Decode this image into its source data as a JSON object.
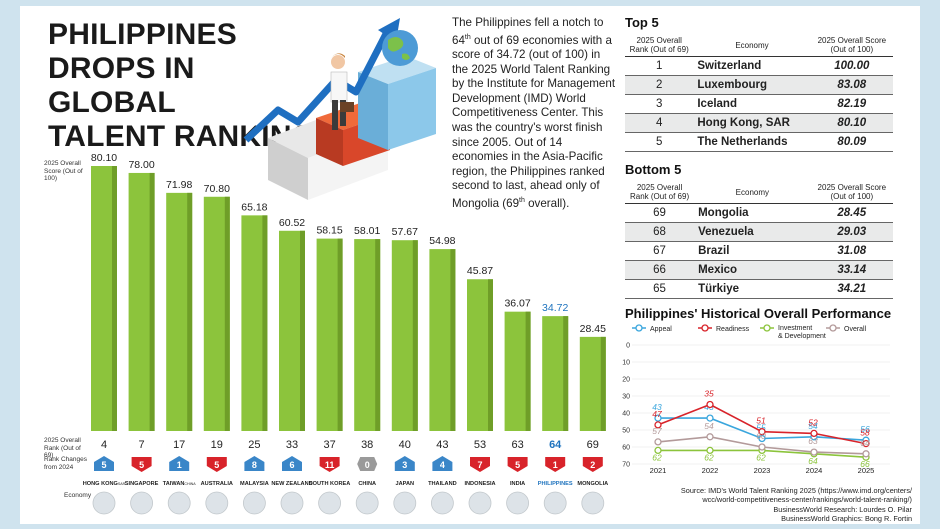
{
  "headline": [
    "PHILIPPINES",
    "DROPS IN GLOBAL",
    "TALENT RANKING"
  ],
  "intro_parts": [
    "The Philippines fell a notch to 64",
    "th",
    " out of 69 economies with a score of 34.72 (out of 100) in the 2025 World Talent Ranking by the Institute for Management Development (IMD) World Competitiveness Center. This was the country's worst finish since 2005. Out of 14 economies in the Asia-Pacific region, the Philippines ranked second to last, ahead only of Mongolia (69",
    "th",
    " overall)."
  ],
  "colors": {
    "bar": "#8cc43c",
    "bar_dark": "#6f9e28",
    "up": "#3a86c8",
    "down": "#d8232a",
    "flat": "#9a9a9a",
    "highlight": "#1e73be"
  },
  "chart_data": [
    {
      "type": "bar",
      "ylabel": "2025 Overall Score (Out of 100)",
      "categories": [
        "HONG KONG",
        "SINGAPORE",
        "TAIWAN",
        "AUSTRALIA",
        "MALAYSIA",
        "NEW ZEALAND",
        "SOUTH KOREA",
        "CHINA",
        "JAPAN",
        "THAILAND",
        "INDONESIA",
        "INDIA",
        "PHILIPPINES",
        "MONGOLIA"
      ],
      "category_suffix": [
        "SAR",
        "",
        "CHINA",
        "",
        "",
        "",
        "",
        "",
        "",
        "",
        "",
        "",
        "",
        ""
      ],
      "values": [
        80.1,
        78.0,
        71.98,
        70.8,
        65.18,
        60.52,
        58.15,
        58.01,
        57.67,
        54.98,
        45.87,
        36.07,
        34.72,
        28.45
      ],
      "value_labels": [
        "80.10",
        "78.00",
        "71.98",
        "70.80",
        "65.18",
        "60.52",
        "58.15",
        "58.01",
        "57.67",
        "54.98",
        "45.87",
        "36.07",
        "34.72",
        "28.45"
      ],
      "highlight": "PHILIPPINES",
      "ylim": [
        0,
        100
      ],
      "rank_label": "2025 Overall Rank (Out of 69)",
      "ranks": [
        4,
        7,
        17,
        19,
        25,
        33,
        37,
        38,
        40,
        43,
        53,
        63,
        64,
        69
      ],
      "rank_change_label": "Rank Changes from 2024",
      "rank_changes": [
        5,
        5,
        1,
        5,
        8,
        6,
        11,
        0,
        3,
        4,
        7,
        5,
        1,
        2
      ],
      "rank_directions": [
        "up",
        "down",
        "up",
        "down",
        "up",
        "up",
        "down",
        "flat",
        "up",
        "up",
        "down",
        "down",
        "down",
        "down"
      ],
      "economy_label": "Economy"
    },
    {
      "type": "line",
      "title": "Philippines' Historical Overall Performance",
      "x": [
        "2021",
        "2022",
        "2023",
        "2024",
        "2025"
      ],
      "ylim": [
        70,
        0
      ],
      "yticks": [
        0,
        10,
        20,
        30,
        40,
        50,
        60,
        70
      ],
      "reversed_axis": true,
      "legend_position": "top",
      "series": [
        {
          "name": "Appeal",
          "color": "#3aa6dd",
          "values": [
            43,
            43,
            55,
            54,
            56
          ],
          "labels": [
            "43",
            "43",
            "55",
            "54",
            "56"
          ]
        },
        {
          "name": "Readiness",
          "color": "#d8232a",
          "values": [
            47,
            35,
            51,
            52,
            58
          ],
          "labels": [
            "47",
            "35",
            "51",
            "52",
            "58"
          ]
        },
        {
          "name": "Investment & Development",
          "color": "#8cc43c",
          "values": [
            62,
            62,
            62,
            64,
            66
          ],
          "labels": [
            "62",
            "62",
            "62",
            "64",
            "66"
          ]
        },
        {
          "name": "Overall",
          "color": "#b39a9a",
          "values": [
            57,
            54,
            60,
            63,
            64
          ],
          "labels": [
            "57",
            "54",
            "60",
            "63",
            "64"
          ]
        }
      ]
    }
  ],
  "top5": {
    "title": "Top 5",
    "col_rank": "2025 Overall Rank (Out of 69)",
    "col_economy": "Economy",
    "col_score": "2025 Overall Score (Out of 100)",
    "rows": [
      {
        "rank": "1",
        "economy": "Switzerland",
        "score": "100.00"
      },
      {
        "rank": "2",
        "economy": "Luxembourg",
        "score": "83.08"
      },
      {
        "rank": "3",
        "economy": "Iceland",
        "score": "82.19"
      },
      {
        "rank": "4",
        "economy": "Hong Kong, SAR",
        "score": "80.10"
      },
      {
        "rank": "5",
        "economy": "The Netherlands",
        "score": "80.09"
      }
    ]
  },
  "bottom5": {
    "title": "Bottom 5",
    "col_rank": "2025 Overall Rank (Out of 69)",
    "col_economy": "Economy",
    "col_score": "2025 Overall Score (Out of 100)",
    "rows": [
      {
        "rank": "69",
        "economy": "Mongolia",
        "score": "28.45"
      },
      {
        "rank": "68",
        "economy": "Venezuela",
        "score": "29.03"
      },
      {
        "rank": "67",
        "economy": "Brazil",
        "score": "31.08"
      },
      {
        "rank": "66",
        "economy": "Mexico",
        "score": "33.14"
      },
      {
        "rank": "65",
        "economy": "Türkiye",
        "score": "34.21"
      }
    ]
  },
  "source": {
    "line1": "Source: IMD's World Talent Ranking 2025 (https://www.imd.org/centers/",
    "line2": "wcc/world-competitiveness-center/rankings/world-talent-ranking/)",
    "line3": "BusinessWorld Research: Lourdes O. Pilar",
    "line4": "BusinessWorld Graphics: Bong R. Fortin"
  }
}
